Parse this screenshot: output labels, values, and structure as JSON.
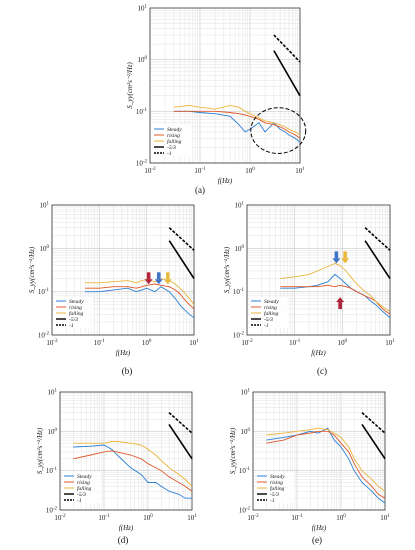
{
  "figure": {
    "panel_labels": [
      "(a)",
      "(b)",
      "(c)",
      "(d)",
      "(e)"
    ],
    "legend": [
      "Steady",
      "rising",
      "falling",
      "-5/3",
      "-1"
    ]
  },
  "colors": {
    "steady": "#2a7fd4",
    "rising": "#e0582a",
    "falling": "#eab43a",
    "slope53": "#000000",
    "slope1": "#000000",
    "arrow_red": "#b0213a",
    "arrow_blue": "#3f73c6",
    "arrow_yellow": "#e8b93c",
    "grid_major": "#bdbdbd",
    "grid_minor": "#e2e2e2"
  },
  "chart_data": [
    {
      "panel": "(a)",
      "type": "line",
      "log_x": true,
      "log_y": true,
      "xlim": [
        0.01,
        10
      ],
      "ylim": [
        0.01,
        10
      ],
      "xlabel": "f(Hz)",
      "ylabel": "S_yy(cm²s⁻²/Hz)",
      "x_ticks": [
        "10^-2",
        "10^-1",
        "10^0",
        "10^1"
      ],
      "y_ticks": [
        "10^-2",
        "10^-1",
        "10^0",
        "10^1"
      ],
      "legend_position": "bottom-left",
      "annotation": "dashed ellipse around 1.5–9 Hz",
      "series": [
        {
          "name": "Steady",
          "x": [
            0.03,
            0.06,
            0.1,
            0.2,
            0.4,
            0.6,
            0.8,
            1,
            1.5,
            2,
            3,
            4,
            5,
            6,
            8,
            10
          ],
          "y": [
            0.1,
            0.1,
            0.095,
            0.09,
            0.08,
            0.055,
            0.04,
            0.045,
            0.06,
            0.04,
            0.06,
            0.045,
            0.04,
            0.035,
            0.03,
            0.025
          ]
        },
        {
          "name": "rising",
          "x": [
            0.03,
            0.06,
            0.1,
            0.2,
            0.4,
            0.6,
            0.8,
            1,
            1.5,
            2,
            3,
            4,
            5,
            6,
            8,
            10
          ],
          "y": [
            0.1,
            0.1,
            0.1,
            0.1,
            0.095,
            0.09,
            0.085,
            0.08,
            0.07,
            0.06,
            0.055,
            0.05,
            0.045,
            0.04,
            0.035,
            0.03
          ]
        },
        {
          "name": "falling",
          "x": [
            0.03,
            0.06,
            0.1,
            0.2,
            0.4,
            0.6,
            0.8,
            1,
            1.5,
            2,
            3,
            4,
            5,
            6,
            8,
            10
          ],
          "y": [
            0.12,
            0.13,
            0.12,
            0.11,
            0.13,
            0.12,
            0.1,
            0.09,
            0.075,
            0.065,
            0.06,
            0.055,
            0.05,
            0.045,
            0.04,
            0.035
          ]
        },
        {
          "name": "-5/3",
          "x": [
            3,
            10
          ],
          "y": [
            1.5,
            0.2
          ]
        },
        {
          "name": "-1",
          "x": [
            3,
            10
          ],
          "y": [
            3.0,
            0.9
          ]
        }
      ]
    },
    {
      "panel": "(b)",
      "type": "line",
      "log_x": true,
      "log_y": true,
      "xlim": [
        0.01,
        10
      ],
      "ylim": [
        0.01,
        10
      ],
      "xlabel": "f(Hz)",
      "ylabel": "S_yy(cm²s⁻²/Hz)",
      "x_ticks": [
        "10^-2",
        "10^-1",
        "10^0",
        "10^1"
      ],
      "y_ticks": [
        "10^-2",
        "10^-1",
        "10^0",
        "10^1"
      ],
      "legend_position": "bottom-left",
      "arrows_at_hz": [
        1.1,
        1.8,
        2.8
      ],
      "series": [
        {
          "name": "Steady",
          "x": [
            0.05,
            0.1,
            0.2,
            0.4,
            0.6,
            0.8,
            1,
            1.5,
            2,
            3,
            4,
            5,
            6,
            8,
            10
          ],
          "y": [
            0.1,
            0.1,
            0.11,
            0.12,
            0.1,
            0.11,
            0.12,
            0.1,
            0.13,
            0.1,
            0.07,
            0.05,
            0.04,
            0.03,
            0.025
          ]
        },
        {
          "name": "rising",
          "x": [
            0.05,
            0.1,
            0.2,
            0.4,
            0.6,
            0.8,
            1,
            1.5,
            2,
            3,
            4,
            5,
            6,
            8,
            10
          ],
          "y": [
            0.12,
            0.12,
            0.13,
            0.13,
            0.12,
            0.13,
            0.14,
            0.15,
            0.14,
            0.13,
            0.11,
            0.09,
            0.07,
            0.05,
            0.04
          ]
        },
        {
          "name": "falling",
          "x": [
            0.05,
            0.1,
            0.2,
            0.4,
            0.6,
            0.8,
            1,
            1.5,
            2,
            3,
            4,
            5,
            6,
            8,
            10
          ],
          "y": [
            0.16,
            0.16,
            0.17,
            0.18,
            0.16,
            0.18,
            0.19,
            0.17,
            0.2,
            0.18,
            0.15,
            0.12,
            0.1,
            0.07,
            0.05
          ]
        },
        {
          "name": "-5/3",
          "x": [
            3,
            10
          ],
          "y": [
            1.5,
            0.2
          ]
        },
        {
          "name": "-1",
          "x": [
            3,
            10
          ],
          "y": [
            3.0,
            0.9
          ]
        }
      ]
    },
    {
      "panel": "(c)",
      "type": "line",
      "log_x": true,
      "log_y": true,
      "xlim": [
        0.01,
        10
      ],
      "ylim": [
        0.01,
        10
      ],
      "xlabel": "f(Hz)",
      "ylabel": "S_yy(cm²s⁻²/Hz)",
      "x_ticks": [
        "10^-2",
        "10^-1",
        "10^0",
        "10^1"
      ],
      "y_ticks": [
        "10^-2",
        "10^-1",
        "10^0",
        "10^1"
      ],
      "legend_position": "bottom-left",
      "arrows_at_hz": [
        0.75,
        0.9,
        0.9
      ],
      "series": [
        {
          "name": "Steady",
          "x": [
            0.05,
            0.1,
            0.2,
            0.3,
            0.5,
            0.7,
            0.9,
            1.2,
            1.5,
            2,
            3,
            4,
            5,
            7,
            10
          ],
          "y": [
            0.12,
            0.12,
            0.13,
            0.14,
            0.17,
            0.25,
            0.2,
            0.15,
            0.12,
            0.1,
            0.08,
            0.06,
            0.05,
            0.035,
            0.025
          ]
        },
        {
          "name": "rising",
          "x": [
            0.05,
            0.1,
            0.2,
            0.3,
            0.5,
            0.7,
            0.9,
            1.2,
            1.5,
            2,
            3,
            4,
            5,
            7,
            10
          ],
          "y": [
            0.13,
            0.13,
            0.13,
            0.13,
            0.14,
            0.13,
            0.14,
            0.13,
            0.12,
            0.1,
            0.08,
            0.07,
            0.06,
            0.04,
            0.03
          ]
        },
        {
          "name": "falling",
          "x": [
            0.05,
            0.1,
            0.2,
            0.3,
            0.5,
            0.7,
            0.9,
            1.2,
            1.5,
            2,
            3,
            4,
            5,
            7,
            10
          ],
          "y": [
            0.2,
            0.22,
            0.25,
            0.3,
            0.38,
            0.45,
            0.4,
            0.3,
            0.22,
            0.15,
            0.1,
            0.08,
            0.06,
            0.045,
            0.035
          ]
        },
        {
          "name": "-5/3",
          "x": [
            3,
            10
          ],
          "y": [
            1.5,
            0.2
          ]
        },
        {
          "name": "-1",
          "x": [
            3,
            10
          ],
          "y": [
            3.0,
            0.9
          ]
        }
      ]
    },
    {
      "panel": "(d)",
      "type": "line",
      "log_x": true,
      "log_y": true,
      "xlim": [
        0.01,
        10
      ],
      "ylim": [
        0.01,
        10
      ],
      "xlabel": "f(Hz)",
      "ylabel": "S_yy(cm²s⁻²/Hz)",
      "x_ticks": [
        "10^-2",
        "10^-1",
        "10^0",
        "10^1"
      ],
      "y_ticks": [
        "10^-2",
        "10^-1",
        "10^0",
        "10^1"
      ],
      "legend_position": "bottom-left",
      "series": [
        {
          "name": "Steady",
          "x": [
            0.02,
            0.05,
            0.1,
            0.15,
            0.2,
            0.4,
            0.7,
            1,
            1.5,
            2,
            3,
            5,
            7,
            10
          ],
          "y": [
            0.4,
            0.42,
            0.45,
            0.35,
            0.25,
            0.12,
            0.08,
            0.05,
            0.05,
            0.04,
            0.03,
            0.025,
            0.02,
            0.02
          ]
        },
        {
          "name": "rising",
          "x": [
            0.02,
            0.05,
            0.1,
            0.15,
            0.2,
            0.4,
            0.7,
            1,
            1.5,
            2,
            3,
            5,
            7,
            10
          ],
          "y": [
            0.2,
            0.25,
            0.3,
            0.32,
            0.3,
            0.25,
            0.2,
            0.15,
            0.12,
            0.1,
            0.07,
            0.05,
            0.04,
            0.03
          ]
        },
        {
          "name": "falling",
          "x": [
            0.02,
            0.05,
            0.1,
            0.15,
            0.2,
            0.4,
            0.7,
            1,
            1.5,
            2,
            3,
            5,
            7,
            10
          ],
          "y": [
            0.5,
            0.5,
            0.5,
            0.55,
            0.55,
            0.5,
            0.45,
            0.35,
            0.25,
            0.18,
            0.12,
            0.08,
            0.06,
            0.04
          ]
        },
        {
          "name": "-5/3",
          "x": [
            3,
            10
          ],
          "y": [
            1.5,
            0.2
          ]
        },
        {
          "name": "-1",
          "x": [
            3,
            10
          ],
          "y": [
            3.0,
            0.9
          ]
        }
      ]
    },
    {
      "panel": "(e)",
      "type": "line",
      "log_x": true,
      "log_y": true,
      "xlim": [
        0.01,
        10
      ],
      "ylim": [
        0.01,
        10
      ],
      "xlabel": "f(Hz)",
      "ylabel": "S_yy(cm²s⁻²/Hz)",
      "x_ticks": [
        "10^-2",
        "10^-1",
        "10^0",
        "10^1"
      ],
      "y_ticks": [
        "10^-2",
        "10^-1",
        "10^0",
        "10^1"
      ],
      "legend_position": "bottom-left",
      "series": [
        {
          "name": "Steady",
          "x": [
            0.02,
            0.05,
            0.1,
            0.2,
            0.3,
            0.5,
            0.7,
            1,
            1.5,
            2,
            3,
            5,
            7,
            10
          ],
          "y": [
            0.6,
            0.7,
            0.8,
            1.0,
            0.9,
            1.2,
            0.6,
            0.4,
            0.2,
            0.1,
            0.05,
            0.03,
            0.02,
            0.015
          ]
        },
        {
          "name": "rising",
          "x": [
            0.02,
            0.05,
            0.1,
            0.2,
            0.3,
            0.5,
            0.7,
            1,
            1.5,
            2,
            3,
            5,
            7,
            10
          ],
          "y": [
            0.5,
            0.6,
            0.8,
            0.9,
            1.0,
            1.0,
            0.8,
            0.5,
            0.3,
            0.15,
            0.07,
            0.04,
            0.025,
            0.02
          ]
        },
        {
          "name": "falling",
          "x": [
            0.02,
            0.05,
            0.1,
            0.2,
            0.3,
            0.5,
            0.7,
            1,
            1.5,
            2,
            3,
            5,
            7,
            10
          ],
          "y": [
            0.8,
            0.9,
            1.0,
            1.1,
            1.2,
            1.1,
            0.9,
            0.7,
            0.4,
            0.2,
            0.1,
            0.06,
            0.04,
            0.03
          ]
        },
        {
          "name": "-5/3",
          "x": [
            3,
            10
          ],
          "y": [
            1.5,
            0.2
          ]
        },
        {
          "name": "-1",
          "x": [
            3,
            10
          ],
          "y": [
            3.0,
            0.9
          ]
        }
      ]
    }
  ]
}
